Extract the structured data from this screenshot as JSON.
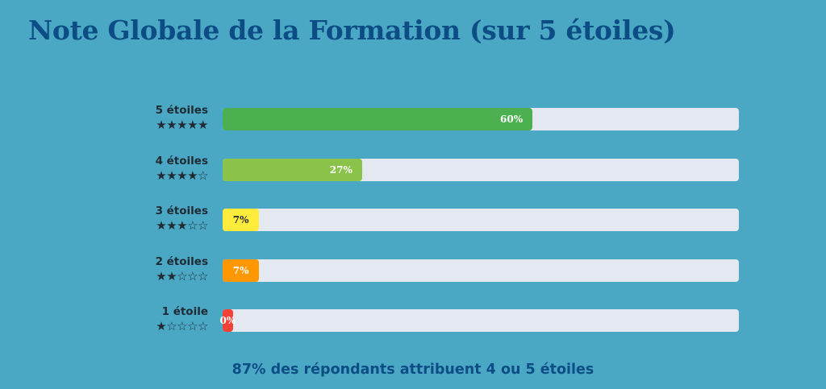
{
  "title": "Note Globale de la Formation (sur 5 étoiles)",
  "footer": "87% des répondants attribuent 4 ou 5 étoiles",
  "colors": {
    "background": "#4aa8c5",
    "title": "#0d4d86",
    "track": "#e4e9f1"
  },
  "chart_data": {
    "type": "bar",
    "orientation": "horizontal",
    "title": "Note Globale de la Formation (sur 5 étoiles)",
    "xlim": [
      0,
      100
    ],
    "unit": "%",
    "categories": [
      {
        "label": "5 étoiles",
        "stars": "★★★★★",
        "value": 60,
        "value_label": "60%",
        "color": "#4caf50",
        "text_color": "#ffffff"
      },
      {
        "label": "4 étoiles",
        "stars": "★★★★☆",
        "value": 27,
        "value_label": "27%",
        "color": "#8bc34a",
        "text_color": "#ffffff"
      },
      {
        "label": "3 étoiles",
        "stars": "★★★☆☆",
        "value": 7,
        "value_label": "7%",
        "color": "#ffeb3b",
        "text_color": "#1f2a33"
      },
      {
        "label": "2 étoiles",
        "stars": "★★☆☆☆",
        "value": 7,
        "value_label": "7%",
        "color": "#ff9800",
        "text_color": "#ffffff"
      },
      {
        "label": "1 étoile",
        "stars": "★☆☆☆☆",
        "value": 0,
        "value_label": "0%",
        "color": "#f44336",
        "text_color": "#ffffff"
      }
    ]
  }
}
